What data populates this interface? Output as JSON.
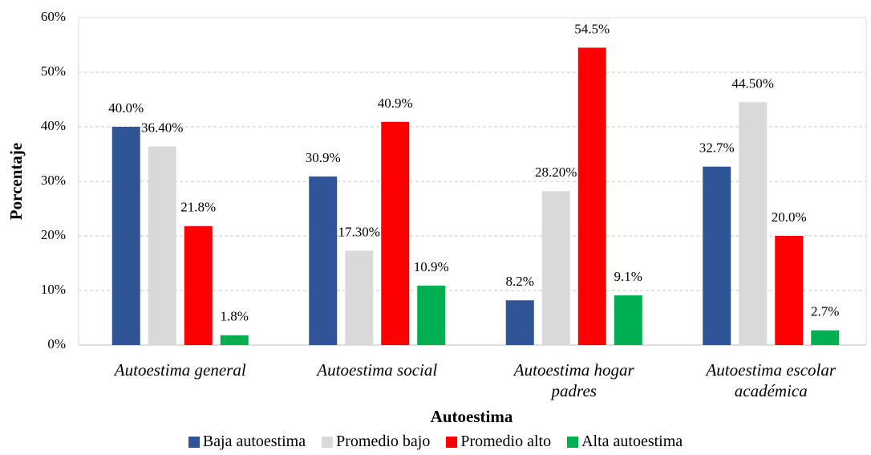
{
  "chart_data": {
    "type": "bar",
    "x_label": "Autoestima",
    "y_label": "Porcentaje",
    "categories": [
      "Autoestima general",
      "Autoestima social",
      "Autoestima hogar padres",
      "Autoestima escolar académica"
    ],
    "series": [
      {
        "name": "Baja autoestima",
        "color": "#2f5597",
        "values": [
          40.0,
          30.9,
          8.2,
          32.7
        ],
        "value_labels": [
          "40.0%",
          "30.9%",
          "8.2%",
          "32.7%"
        ]
      },
      {
        "name": "Promedio bajo",
        "color": "#d9d9d9",
        "values": [
          36.4,
          17.3,
          28.2,
          44.5
        ],
        "value_labels": [
          "36.40%",
          "17.30%",
          "28.20%",
          "44.50%"
        ]
      },
      {
        "name": "Promedio alto",
        "color": "#ff0000",
        "values": [
          21.8,
          40.9,
          54.5,
          20.0
        ],
        "value_labels": [
          "21.8%",
          "40.9%",
          "54.5%",
          "20.0%"
        ]
      },
      {
        "name": "Alta autoestima",
        "color": "#00b050",
        "values": [
          1.8,
          10.9,
          9.1,
          2.7
        ],
        "value_labels": [
          "1.8%",
          "10.9%",
          "9.1%",
          "2.7%"
        ]
      }
    ],
    "ylim": [
      0,
      60
    ],
    "yticks": [
      {
        "value": 0,
        "label": "0%"
      },
      {
        "value": 10,
        "label": "10%"
      },
      {
        "value": 20,
        "label": "20%"
      },
      {
        "value": 30,
        "label": "30%"
      },
      {
        "value": 40,
        "label": "40%"
      },
      {
        "value": 50,
        "label": "50%"
      },
      {
        "value": 60,
        "label": "60%"
      }
    ],
    "grid": true,
    "legend": "bottom"
  }
}
